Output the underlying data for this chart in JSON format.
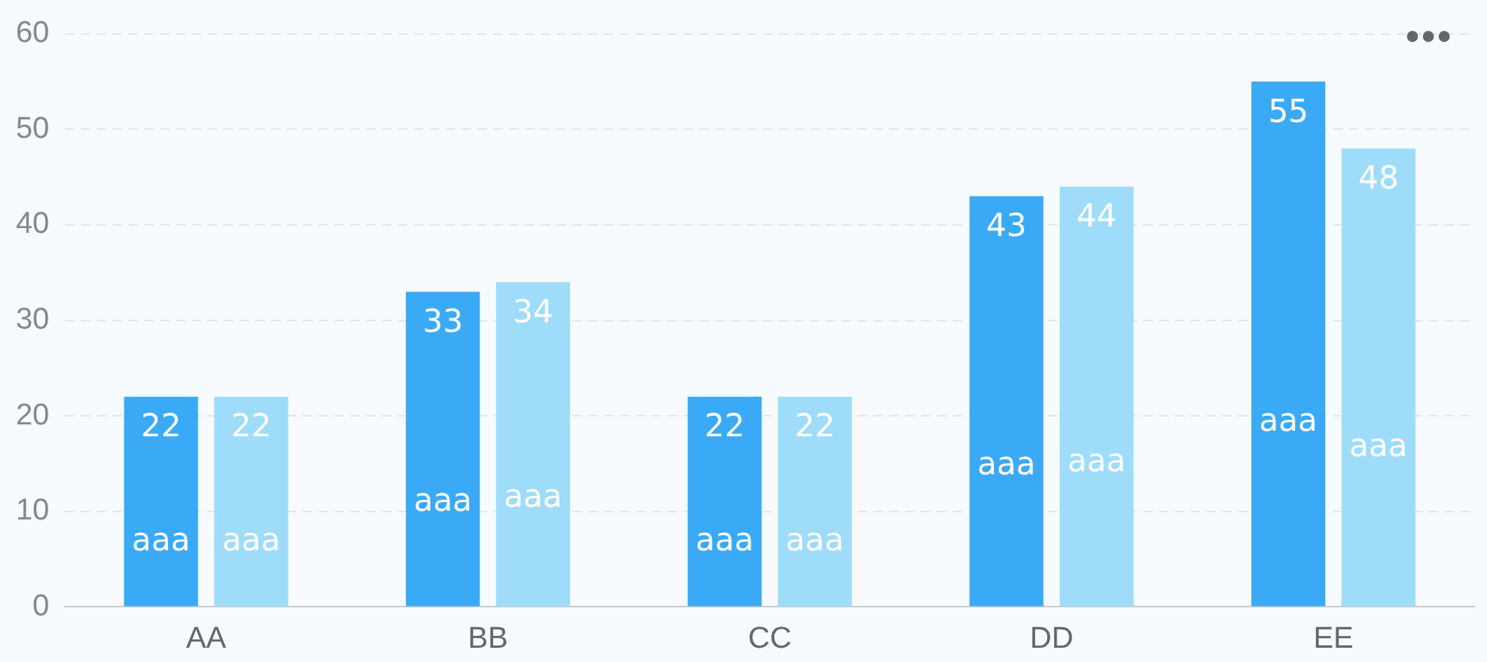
{
  "chart_data": {
    "type": "bar",
    "categories": [
      "AA",
      "BB",
      "CC",
      "DD",
      "EE"
    ],
    "series": [
      {
        "color": "#3aaaf6",
        "values": [
          22,
          33,
          22,
          43,
          55
        ]
      },
      {
        "color": "#9edcfa",
        "values": [
          22,
          34,
          22,
          44,
          48
        ]
      }
    ],
    "ylim": [
      0,
      60
    ],
    "yticks": [
      0,
      10,
      20,
      30,
      40,
      50,
      60
    ],
    "grid": "y",
    "legend": false,
    "data_labels": true,
    "annotations": [
      "aaa",
      "aaa",
      "aaa",
      "aaa",
      "aaa",
      "aaa",
      "aaa",
      "aaa",
      "aaa",
      "aaa"
    ]
  }
}
